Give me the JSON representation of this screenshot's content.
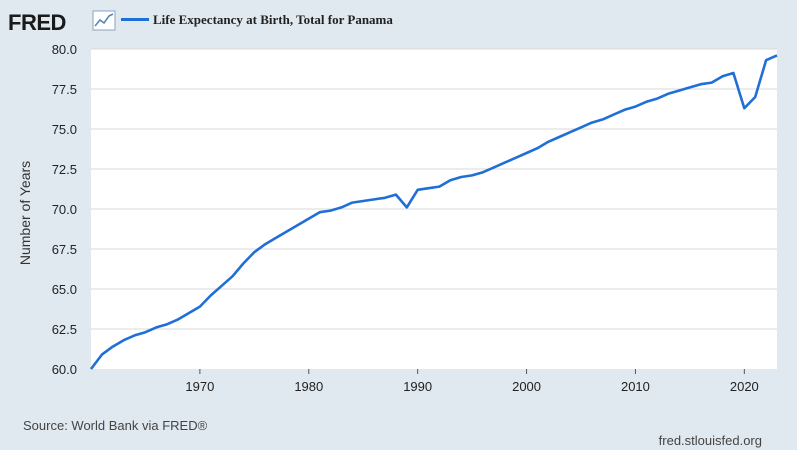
{
  "header": {
    "brand": "FRED",
    "brand_icon": "line-chart-icon",
    "series_color": "#1f6fd6"
  },
  "footer": {
    "source": "Source: World Bank via FRED®",
    "site": "fred.stlouisfed.org"
  },
  "chart_data": {
    "type": "line",
    "title": "",
    "ylabel": "Number of Years",
    "xlabel": "",
    "xlim": [
      1960,
      2023
    ],
    "ylim": [
      60.0,
      80.0
    ],
    "x_ticks": [
      "1970",
      "1980",
      "1990",
      "2000",
      "2010",
      "2020"
    ],
    "y_ticks": [
      "60.0",
      "62.5",
      "65.0",
      "67.5",
      "70.0",
      "72.5",
      "75.0",
      "77.5",
      "80.0"
    ],
    "grid": true,
    "legend_position": "top-left",
    "series": [
      {
        "name": "Life Expectancy at Birth, Total for Panama",
        "color": "#1f6fd6",
        "x": [
          1960,
          1961,
          1962,
          1963,
          1964,
          1965,
          1966,
          1967,
          1968,
          1969,
          1970,
          1971,
          1972,
          1973,
          1974,
          1975,
          1976,
          1977,
          1978,
          1979,
          1980,
          1981,
          1982,
          1983,
          1984,
          1985,
          1986,
          1987,
          1988,
          1989,
          1990,
          1991,
          1992,
          1993,
          1994,
          1995,
          1996,
          1997,
          1998,
          1999,
          2000,
          2001,
          2002,
          2003,
          2004,
          2005,
          2006,
          2007,
          2008,
          2009,
          2010,
          2011,
          2012,
          2013,
          2014,
          2015,
          2016,
          2017,
          2018,
          2019,
          2020,
          2021,
          2022,
          2023
        ],
        "values": [
          60.0,
          60.9,
          61.4,
          61.8,
          62.1,
          62.3,
          62.6,
          62.8,
          63.1,
          63.5,
          63.9,
          64.6,
          65.2,
          65.8,
          66.6,
          67.3,
          67.8,
          68.2,
          68.6,
          69.0,
          69.4,
          69.8,
          69.9,
          70.1,
          70.4,
          70.5,
          70.6,
          70.7,
          70.9,
          70.1,
          71.2,
          71.3,
          71.4,
          71.8,
          72.0,
          72.1,
          72.3,
          72.6,
          72.9,
          73.2,
          73.5,
          73.8,
          74.2,
          74.5,
          74.8,
          75.1,
          75.4,
          75.6,
          75.9,
          76.2,
          76.4,
          76.7,
          76.9,
          77.2,
          77.4,
          77.6,
          77.8,
          77.9,
          78.3,
          78.5,
          76.3,
          77.0,
          79.3,
          79.6
        ]
      }
    ]
  }
}
